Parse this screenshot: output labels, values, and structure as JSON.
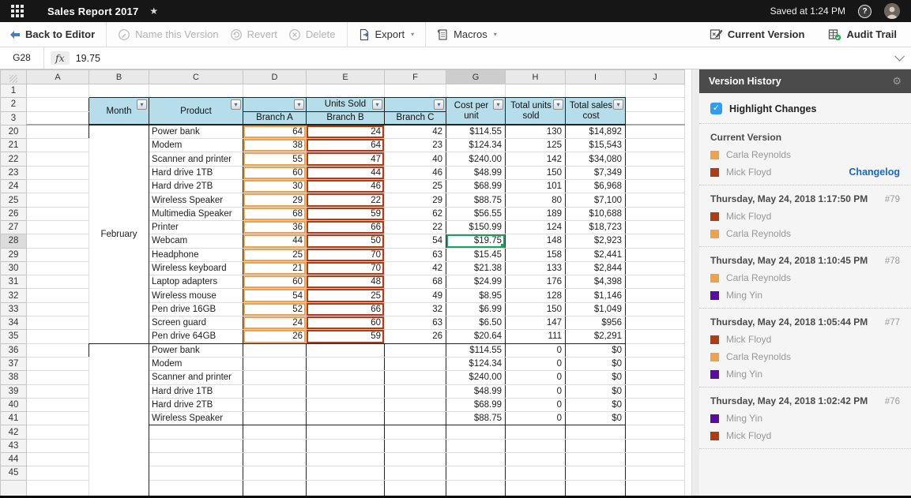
{
  "topbar": {
    "title": "Sales Report 2017",
    "star": "★",
    "saved_status": "Saved at 1:24 PM",
    "help": "?"
  },
  "toolbar": {
    "back_to_editor": "Back to Editor",
    "name_this_version": "Name this Version",
    "revert": "Revert",
    "delete": "Delete",
    "export": "Export",
    "macros": "Macros",
    "current_version": "Current Version",
    "audit_trail": "Audit Trail",
    "dropdown_caret": "▾"
  },
  "formula_bar": {
    "cell_ref": "G28",
    "fx_label": "fx",
    "value": "19.75"
  },
  "grid": {
    "column_letters": [
      "A",
      "B",
      "C",
      "D",
      "E",
      "F",
      "G",
      "H",
      "I",
      "J"
    ],
    "selected_column": "G",
    "selected_row": 28,
    "frozen_rows": [
      1,
      2,
      3
    ],
    "body_row_start": 20,
    "body_row_end": 45,
    "header": {
      "month": "Month",
      "product": "Product",
      "units_sold": "Units Sold",
      "branches": [
        "Branch A",
        "Branch B",
        "Branch C"
      ],
      "cost_per_unit": "Cost per unit",
      "total_units_sold": "Total units sold",
      "total_sales_cost": "Total sales cost",
      "filter_arrow": "▾"
    },
    "month_label": "February",
    "data_rows": [
      {
        "row": 20,
        "product": "Power bank",
        "branch_a": "64",
        "branch_b": "24",
        "branch_c": "42",
        "cost_per_unit": "$114.55",
        "total_units": "130",
        "total_sales": "$14,892"
      },
      {
        "row": 21,
        "product": "Modem",
        "branch_a": "38",
        "branch_b": "64",
        "branch_c": "23",
        "cost_per_unit": "$124.34",
        "total_units": "125",
        "total_sales": "$15,543"
      },
      {
        "row": 22,
        "product": "Scanner and printer",
        "branch_a": "55",
        "branch_b": "47",
        "branch_c": "40",
        "cost_per_unit": "$240.00",
        "total_units": "142",
        "total_sales": "$34,080"
      },
      {
        "row": 23,
        "product": "Hard drive 1TB",
        "branch_a": "60",
        "branch_b": "44",
        "branch_c": "46",
        "cost_per_unit": "$48.99",
        "total_units": "150",
        "total_sales": "$7,349"
      },
      {
        "row": 24,
        "product": "Hard drive 2TB",
        "branch_a": "30",
        "branch_b": "46",
        "branch_c": "25",
        "cost_per_unit": "$68.99",
        "total_units": "101",
        "total_sales": "$6,968"
      },
      {
        "row": 25,
        "product": "Wireless Speaker",
        "branch_a": "29",
        "branch_b": "22",
        "branch_c": "29",
        "cost_per_unit": "$88.75",
        "total_units": "80",
        "total_sales": "$7,100"
      },
      {
        "row": 26,
        "product": "Multimedia Speaker",
        "branch_a": "68",
        "branch_b": "59",
        "branch_c": "62",
        "cost_per_unit": "$56.55",
        "total_units": "189",
        "total_sales": "$10,688"
      },
      {
        "row": 27,
        "product": "Printer",
        "branch_a": "36",
        "branch_b": "66",
        "branch_c": "22",
        "cost_per_unit": "$150.99",
        "total_units": "124",
        "total_sales": "$18,723"
      },
      {
        "row": 28,
        "product": "Webcam",
        "branch_a": "44",
        "branch_b": "50",
        "branch_c": "54",
        "cost_per_unit": "$19.75",
        "total_units": "148",
        "total_sales": "$2,923"
      },
      {
        "row": 29,
        "product": "Headphone",
        "branch_a": "25",
        "branch_b": "70",
        "branch_c": "63",
        "cost_per_unit": "$15.45",
        "total_units": "158",
        "total_sales": "$2,441"
      },
      {
        "row": 30,
        "product": "Wireless keyboard",
        "branch_a": "21",
        "branch_b": "70",
        "branch_c": "42",
        "cost_per_unit": "$21.38",
        "total_units": "133",
        "total_sales": "$2,844"
      },
      {
        "row": 31,
        "product": "Laptop adapters",
        "branch_a": "60",
        "branch_b": "48",
        "branch_c": "68",
        "cost_per_unit": "$24.99",
        "total_units": "176",
        "total_sales": "$4,398"
      },
      {
        "row": 32,
        "product": "Wireless mouse",
        "branch_a": "54",
        "branch_b": "25",
        "branch_c": "49",
        "cost_per_unit": "$8.95",
        "total_units": "128",
        "total_sales": "$1,146"
      },
      {
        "row": 33,
        "product": "Pen drive 16GB",
        "branch_a": "52",
        "branch_b": "66",
        "branch_c": "32",
        "cost_per_unit": "$6.99",
        "total_units": "150",
        "total_sales": "$1,049"
      },
      {
        "row": 34,
        "product": "Screen guard",
        "branch_a": "24",
        "branch_b": "60",
        "branch_c": "63",
        "cost_per_unit": "$6.50",
        "total_units": "147",
        "total_sales": "$956"
      },
      {
        "row": 35,
        "product": "Pen drive 64GB",
        "branch_a": "26",
        "branch_b": "59",
        "branch_c": "26",
        "cost_per_unit": "$20.64",
        "total_units": "111",
        "total_sales": "$2,291"
      }
    ],
    "extra_rows": [
      {
        "row": 36,
        "product": "Power bank",
        "cost_per_unit": "$114.55",
        "total_units": "0",
        "total_sales": "$0"
      },
      {
        "row": 37,
        "product": "Modem",
        "cost_per_unit": "$124.34",
        "total_units": "0",
        "total_sales": "$0"
      },
      {
        "row": 38,
        "product": "Scanner and printer",
        "cost_per_unit": "$240.00",
        "total_units": "0",
        "total_sales": "$0"
      },
      {
        "row": 39,
        "product": "Hard drive 1TB",
        "cost_per_unit": "$48.99",
        "total_units": "0",
        "total_sales": "$0"
      },
      {
        "row": 40,
        "product": "Hard drive 2TB",
        "cost_per_unit": "$68.99",
        "total_units": "0",
        "total_sales": "$0"
      },
      {
        "row": 41,
        "product": "Wireless Speaker",
        "cost_per_unit": "$88.75",
        "total_units": "0",
        "total_sales": "$0"
      }
    ]
  },
  "version_history": {
    "title": "Version History",
    "highlight_changes": "Highlight Changes",
    "current": {
      "label": "Current Version",
      "authors": [
        {
          "name": "Carla Reynolds",
          "color": "#F0A14E"
        },
        {
          "name": "Mick Floyd",
          "color": "#B23C10"
        }
      ],
      "changelog": "Changelog"
    },
    "versions": [
      {
        "date": "Thursday, May 24, 2018 1:17:50 PM",
        "number": "#79",
        "authors": [
          {
            "name": "Mick Floyd",
            "color": "#B23C10"
          },
          {
            "name": "Carla Reynolds",
            "color": "#F0A14E"
          }
        ]
      },
      {
        "date": "Thursday, May 24, 2018 1:10:45 PM",
        "number": "#78",
        "authors": [
          {
            "name": "Carla Reynolds",
            "color": "#F0A14E"
          },
          {
            "name": "Ming Yin",
            "color": "#5A0AA6"
          }
        ]
      },
      {
        "date": "Thursday, May 24, 2018 1:05:44 PM",
        "number": "#77",
        "authors": [
          {
            "name": "Mick Floyd",
            "color": "#B23C10"
          },
          {
            "name": "Carla Reynolds",
            "color": "#F0A14E"
          },
          {
            "name": "Ming Yin",
            "color": "#5A0AA6"
          }
        ]
      },
      {
        "date": "Thursday, May 24, 2018 1:02:42 PM",
        "number": "#76",
        "authors": [
          {
            "name": "Ming Yin",
            "color": "#5A0AA6"
          },
          {
            "name": "Mick Floyd",
            "color": "#B23C10"
          }
        ]
      }
    ]
  },
  "colors": {
    "carla_orange": "#F0A14E",
    "mick_rust": "#B23C10",
    "ming_purple": "#5A0AA6",
    "selection_green": "#1AA260",
    "header_fill": "#B6DEEA",
    "link_blue": "#1668C9"
  }
}
